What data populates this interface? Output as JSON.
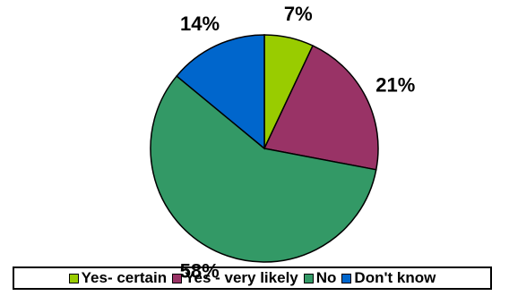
{
  "chart_data": {
    "type": "pie",
    "title": "",
    "categories": [
      "Yes- certain",
      "Yes - very likely",
      "No",
      "Don't know"
    ],
    "values": [
      7,
      21,
      58,
      14
    ],
    "labels": [
      "7%",
      "21%",
      "58%",
      "14%"
    ],
    "colors": [
      "#99cc00",
      "#993366",
      "#339966",
      "#0066cc"
    ],
    "legend_position": "bottom",
    "start_angle_deg": 0,
    "direction": "clockwise"
  }
}
